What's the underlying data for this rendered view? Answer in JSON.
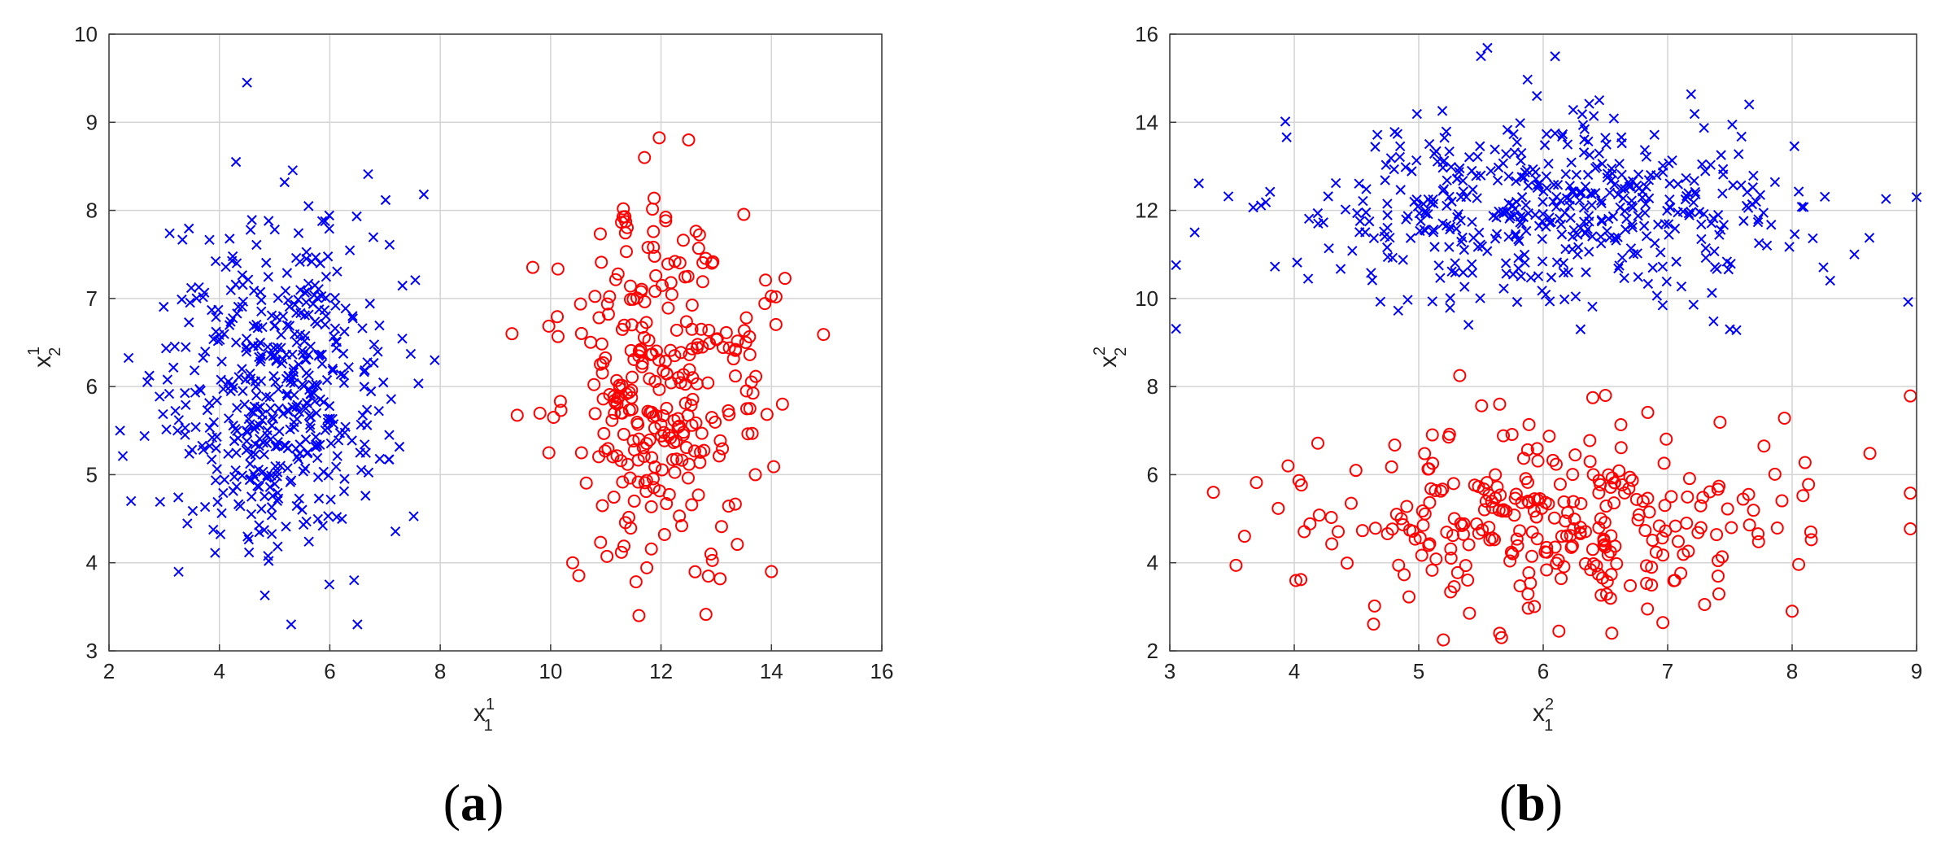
{
  "chart_data": [
    {
      "type": "scatter",
      "caption": "a",
      "xlabel": {
        "base": "x",
        "sup": "1",
        "sub": "1"
      },
      "ylabel": {
        "base": "x",
        "sup": "1",
        "sub": "2"
      },
      "xlim": [
        2,
        16
      ],
      "ylim": [
        3,
        10
      ],
      "xticks": [
        "2",
        "4",
        "6",
        "8",
        "10",
        "12",
        "14",
        "16"
      ],
      "yticks": [
        "3",
        "4",
        "5",
        "6",
        "7",
        "8",
        "9",
        "10"
      ],
      "grid": true,
      "series": [
        {
          "marker": "x",
          "color": "#0000ff",
          "count": 500,
          "mean": [
            5.0,
            6.0
          ],
          "spread": [
            1.0,
            0.9
          ],
          "extremes": [
            [
              4.5,
              9.45
            ],
            [
              2.2,
              5.5
            ],
            [
              2.4,
              4.7
            ],
            [
              7.9,
              6.3
            ],
            [
              5.3,
              3.3
            ],
            [
              6.5,
              3.3
            ],
            [
              4.3,
              8.55
            ]
          ]
        },
        {
          "marker": "o",
          "color": "#ff0000",
          "count": 300,
          "mean": [
            12.0,
            6.0
          ],
          "spread": [
            0.95,
            0.95
          ],
          "extremes": [
            [
              12.5,
              8.8
            ],
            [
              11.7,
              8.6
            ],
            [
              9.3,
              6.6
            ],
            [
              14.0,
              3.9
            ],
            [
              11.6,
              3.4
            ],
            [
              10.4,
              4.0
            ],
            [
              14.2,
              5.8
            ]
          ]
        }
      ]
    },
    {
      "type": "scatter",
      "caption": "b",
      "xlabel": {
        "base": "x",
        "sup": "2",
        "sub": "1"
      },
      "ylabel": {
        "base": "x",
        "sup": "2",
        "sub": "2"
      },
      "xlim": [
        3,
        9
      ],
      "ylim": [
        2,
        16
      ],
      "xticks": [
        "3",
        "4",
        "5",
        "6",
        "7",
        "8",
        "9"
      ],
      "yticks": [
        "2",
        "4",
        "6",
        "8",
        "10",
        "12",
        "14",
        "16"
      ],
      "grid": true,
      "series": [
        {
          "marker": "x",
          "color": "#0000ff",
          "count": 500,
          "mean": [
            6.0,
            12.0
          ],
          "spread": [
            1.0,
            1.0
          ],
          "extremes": [
            [
              5.5,
              15.5
            ],
            [
              3.2,
              11.5
            ],
            [
              9.0,
              12.3
            ],
            [
              7.5,
              9.3
            ],
            [
              5.4,
              9.4
            ],
            [
              6.3,
              9.3
            ],
            [
              8.5,
              11.0
            ]
          ]
        },
        {
          "marker": "o",
          "color": "#ff0000",
          "count": 300,
          "mean": [
            6.0,
            5.0
          ],
          "spread": [
            1.0,
            1.0
          ],
          "extremes": [
            [
              3.35,
              5.6
            ],
            [
              5.65,
              2.4
            ],
            [
              8.0,
              2.9
            ],
            [
              8.15,
              4.7
            ],
            [
              5.65,
              7.6
            ],
            [
              6.5,
              7.8
            ],
            [
              3.95,
              6.2
            ]
          ]
        }
      ]
    }
  ]
}
